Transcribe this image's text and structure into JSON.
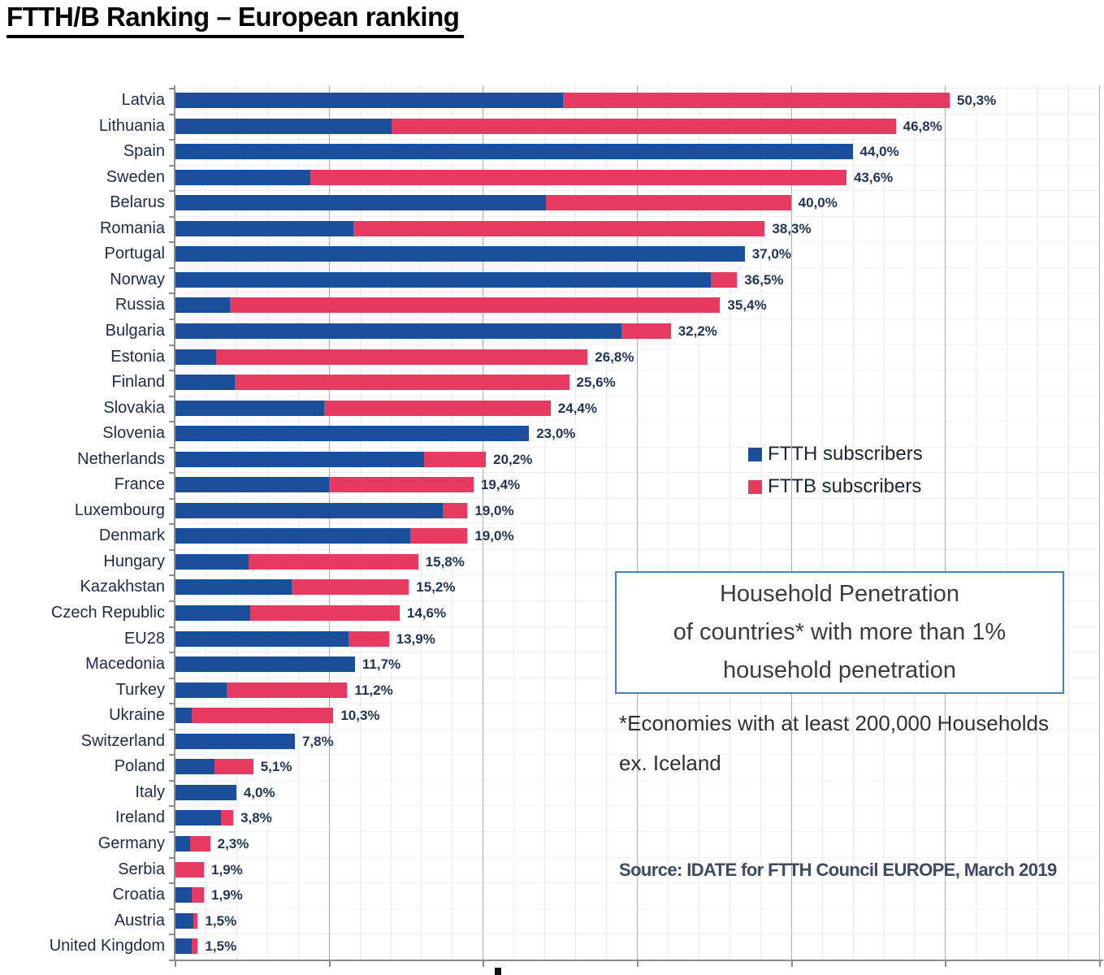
{
  "page_title": "FTTH/B Ranking – European ranking",
  "colors": {
    "ftth_blue": "#1b4e9b",
    "fttb_red": "#e63a60",
    "value_label": "#1f3457",
    "box_border_blue": "#4a7ebf"
  },
  "legend": {
    "items": [
      {
        "label": "FTTH subscribers",
        "color": "#1b4e9b"
      },
      {
        "label": "FTTB subscribers",
        "color": "#e63a60"
      }
    ]
  },
  "annotation_box": {
    "lines": [
      "Household Penetration",
      "of countries* with more than 1%",
      "household penetration"
    ]
  },
  "footnote": {
    "lines": [
      "*Economies with at least 200,000 Households",
      "ex. Iceland"
    ]
  },
  "source": "Source: IDATE for FTTH Council EUROPE, March 2019",
  "chart_data": {
    "type": "bar",
    "orientation": "horizontal",
    "stacked": true,
    "title": "FTTH/B Ranking – European ranking",
    "xlabel": "",
    "ylabel": "",
    "xlim": [
      0,
      60
    ],
    "grid": {
      "minor_step_pct": 2,
      "major_step_pct": 10,
      "vertical_grid": true
    },
    "legend_position": "inside-right",
    "categories": [
      "Latvia",
      "Lithuania",
      "Spain",
      "Sweden",
      "Belarus",
      "Romania",
      "Portugal",
      "Norway",
      "Russia",
      "Bulgaria",
      "Estonia",
      "Finland",
      "Slovakia",
      "Slovenia",
      "Netherlands",
      "France",
      "Luxembourg",
      "Denmark",
      "Hungary",
      "Kazakhstan",
      "Czech Republic",
      "EU28",
      "Macedonia",
      "Turkey",
      "Ukraine",
      "Switzerland",
      "Poland",
      "Italy",
      "Ireland",
      "Germany",
      "Serbia",
      "Croatia",
      "Austria",
      "United Kingdom"
    ],
    "series": [
      {
        "name": "FTTH subscribers",
        "color": "#1b4e9b",
        "values": [
          25.2,
          14.1,
          44.0,
          8.8,
          24.1,
          11.6,
          37.0,
          34.8,
          3.6,
          29.0,
          2.7,
          3.9,
          9.7,
          23.0,
          16.2,
          10.0,
          17.4,
          15.3,
          4.8,
          7.6,
          4.9,
          11.3,
          11.7,
          3.4,
          1.1,
          7.8,
          2.6,
          4.0,
          3.0,
          1.0,
          0.0,
          1.1,
          1.2,
          1.1
        ]
      },
      {
        "name": "FTTB subscribers",
        "color": "#e63a60",
        "values": [
          25.1,
          32.7,
          0.0,
          34.8,
          15.9,
          26.7,
          0.0,
          1.7,
          31.8,
          3.2,
          24.1,
          21.7,
          14.7,
          0.0,
          4.0,
          9.4,
          1.6,
          3.7,
          11.0,
          7.6,
          9.7,
          2.6,
          0.0,
          7.8,
          9.2,
          0.0,
          2.5,
          0.0,
          0.8,
          1.3,
          1.9,
          0.8,
          0.3,
          0.4
        ]
      }
    ],
    "totals": [
      50.3,
      46.8,
      44.0,
      43.6,
      40.0,
      38.3,
      37.0,
      36.5,
      35.4,
      32.2,
      26.8,
      25.6,
      24.4,
      23.0,
      20.2,
      19.4,
      19.0,
      19.0,
      15.8,
      15.2,
      14.6,
      13.9,
      11.7,
      11.2,
      10.3,
      7.8,
      5.1,
      4.0,
      3.8,
      2.3,
      1.9,
      1.9,
      1.5,
      1.5
    ],
    "total_labels": [
      "50,3%",
      "46,8%",
      "44,0%",
      "43,6%",
      "40,0%",
      "38,3%",
      "37,0%",
      "36,5%",
      "35,4%",
      "32,2%",
      "26,8%",
      "25,6%",
      "24,4%",
      "23,0%",
      "20,2%",
      "19,4%",
      "19,0%",
      "19,0%",
      "15,8%",
      "15,2%",
      "14,6%",
      "13,9%",
      "11,7%",
      "11,2%",
      "10,3%",
      "7,8%",
      "5,1%",
      "4,0%",
      "3,8%",
      "2,3%",
      "1,9%",
      "1,9%",
      "1,5%",
      "1,5%"
    ]
  }
}
